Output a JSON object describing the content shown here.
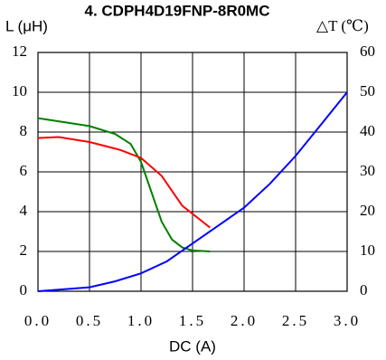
{
  "chart_data": {
    "type": "line",
    "title": "4. CDPH4D19FNP-8R0MC",
    "y_label": "L (μH)",
    "y2_label": "△T (℃)",
    "x_label": "DC (A)",
    "xlim": [
      0,
      3
    ],
    "ylim": [
      0,
      12
    ],
    "y2lim": [
      0,
      60
    ],
    "xticks": [
      {
        "value": 0,
        "label": "0.0"
      },
      0.5,
      {
        "value": 1,
        "label": "1.0"
      },
      1.5,
      {
        "value": 2,
        "label": "2.0"
      },
      2.5,
      {
        "value": 3,
        "label": "3.0"
      }
    ],
    "yticks": [
      0,
      2,
      4,
      6,
      8,
      10,
      12
    ],
    "y2ticks": [
      0,
      10,
      20,
      30,
      40,
      50,
      60
    ],
    "grid": true,
    "series": [
      {
        "color": "#008000",
        "x": [
          0,
          0.25,
          0.5,
          0.75,
          0.9,
          1.0,
          1.1,
          1.2,
          1.3,
          1.4,
          1.5,
          1.67
        ],
        "values": [
          8.7,
          8.5,
          8.3,
          7.9,
          7.4,
          6.5,
          5.0,
          3.5,
          2.6,
          2.2,
          2.05,
          2.0
        ]
      },
      {
        "color": "#ff0000",
        "x": [
          0,
          0.2,
          0.5,
          0.8,
          1.0,
          1.2,
          1.4,
          1.67
        ],
        "values": [
          7.7,
          7.75,
          7.5,
          7.1,
          6.7,
          5.8,
          4.3,
          3.2
        ]
      },
      {
        "color": "#0000ff",
        "axis": "y2",
        "x": [
          0,
          0.5,
          0.75,
          1.0,
          1.25,
          1.5,
          1.75,
          2.0,
          2.25,
          2.5,
          2.75,
          3.0
        ],
        "values": [
          0,
          1,
          2.5,
          4.5,
          7.5,
          12,
          16.5,
          21,
          27,
          34,
          42,
          50
        ]
      }
    ]
  }
}
